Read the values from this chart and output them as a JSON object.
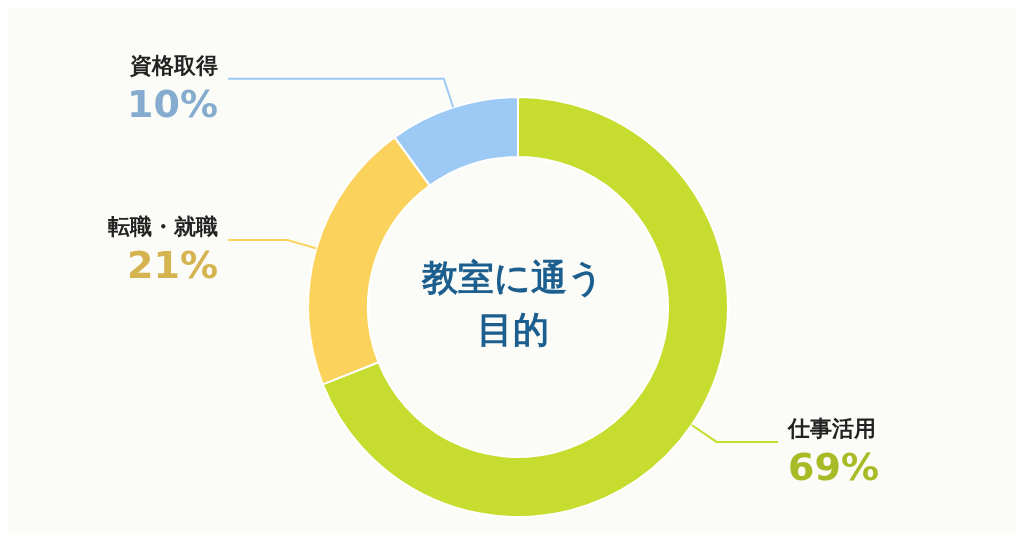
{
  "chart_data": {
    "type": "donut",
    "title": "教室に通う目的",
    "categories": [
      "仕事活用",
      "転職・就職",
      "資格取得"
    ],
    "values": [
      69,
      21,
      10
    ],
    "colors": [
      "#c6dc2e",
      "#fbd35c",
      "#9dcaf4"
    ],
    "value_labels": [
      "69%",
      "21%",
      "10%"
    ]
  }
}
